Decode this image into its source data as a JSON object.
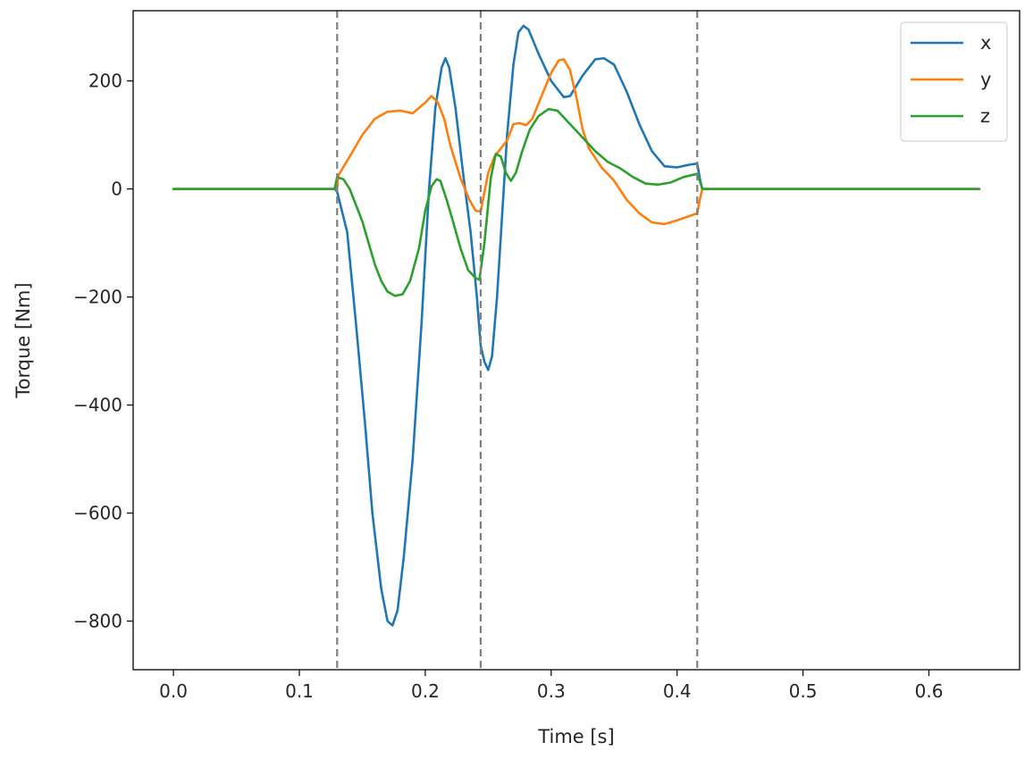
{
  "chart_data": {
    "type": "line",
    "title": "",
    "xlabel": "Time [s]",
    "ylabel": "Torque [Nm]",
    "xlim": [
      -0.032,
      0.672
    ],
    "ylim": [
      -890,
      330
    ],
    "xticks": [
      0.0,
      0.1,
      0.2,
      0.3,
      0.4,
      0.5,
      0.6
    ],
    "xtick_labels": [
      "0.0",
      "0.1",
      "0.2",
      "0.3",
      "0.4",
      "0.5",
      "0.6"
    ],
    "yticks": [
      200,
      0,
      -200,
      -400,
      -600,
      -800
    ],
    "ytick_labels": [
      "200",
      "0",
      "−200",
      "−400",
      "−600",
      "−800"
    ],
    "grid": false,
    "legend": "top-right",
    "vlines": [
      {
        "x": 0.13,
        "style": "dashed",
        "color": "#808080"
      },
      {
        "x": 0.244,
        "style": "dashed",
        "color": "#808080"
      },
      {
        "x": 0.416,
        "style": "dashed",
        "color": "#808080"
      }
    ],
    "series": [
      {
        "name": "x",
        "color": "#1f77b4",
        "points": [
          [
            0.0,
            0
          ],
          [
            0.128,
            0
          ],
          [
            0.13,
            -5
          ],
          [
            0.138,
            -80
          ],
          [
            0.145,
            -250
          ],
          [
            0.152,
            -430
          ],
          [
            0.158,
            -600
          ],
          [
            0.165,
            -740
          ],
          [
            0.17,
            -800
          ],
          [
            0.174,
            -808
          ],
          [
            0.178,
            -780
          ],
          [
            0.183,
            -680
          ],
          [
            0.19,
            -500
          ],
          [
            0.197,
            -250
          ],
          [
            0.203,
            0
          ],
          [
            0.208,
            150
          ],
          [
            0.213,
            225
          ],
          [
            0.216,
            242
          ],
          [
            0.219,
            225
          ],
          [
            0.224,
            150
          ],
          [
            0.23,
            30
          ],
          [
            0.236,
            -80
          ],
          [
            0.241,
            -200
          ],
          [
            0.244,
            -290
          ],
          [
            0.247,
            -320
          ],
          [
            0.25,
            -335
          ],
          [
            0.253,
            -310
          ],
          [
            0.257,
            -200
          ],
          [
            0.261,
            -50
          ],
          [
            0.265,
            100
          ],
          [
            0.27,
            230
          ],
          [
            0.274,
            290
          ],
          [
            0.278,
            302
          ],
          [
            0.282,
            295
          ],
          [
            0.29,
            250
          ],
          [
            0.3,
            200
          ],
          [
            0.31,
            170
          ],
          [
            0.315,
            172
          ],
          [
            0.325,
            210
          ],
          [
            0.335,
            240
          ],
          [
            0.342,
            242
          ],
          [
            0.35,
            230
          ],
          [
            0.36,
            180
          ],
          [
            0.37,
            120
          ],
          [
            0.38,
            70
          ],
          [
            0.39,
            42
          ],
          [
            0.4,
            40
          ],
          [
            0.41,
            45
          ],
          [
            0.416,
            47
          ],
          [
            0.418,
            20
          ],
          [
            0.42,
            0
          ],
          [
            0.64,
            0
          ]
        ]
      },
      {
        "name": "y",
        "color": "#ff7f0e",
        "points": [
          [
            0.0,
            0
          ],
          [
            0.13,
            0
          ],
          [
            0.131,
            25
          ],
          [
            0.14,
            60
          ],
          [
            0.15,
            100
          ],
          [
            0.16,
            130
          ],
          [
            0.17,
            143
          ],
          [
            0.18,
            145
          ],
          [
            0.19,
            140
          ],
          [
            0.2,
            160
          ],
          [
            0.205,
            172
          ],
          [
            0.21,
            160
          ],
          [
            0.215,
            130
          ],
          [
            0.22,
            80
          ],
          [
            0.228,
            20
          ],
          [
            0.235,
            -20
          ],
          [
            0.24,
            -40
          ],
          [
            0.244,
            -42
          ],
          [
            0.25,
            30
          ],
          [
            0.255,
            60
          ],
          [
            0.265,
            90
          ],
          [
            0.27,
            120
          ],
          [
            0.275,
            122
          ],
          [
            0.28,
            118
          ],
          [
            0.285,
            130
          ],
          [
            0.292,
            170
          ],
          [
            0.3,
            215
          ],
          [
            0.306,
            238
          ],
          [
            0.31,
            240
          ],
          [
            0.315,
            220
          ],
          [
            0.32,
            170
          ],
          [
            0.325,
            110
          ],
          [
            0.33,
            75
          ],
          [
            0.34,
            40
          ],
          [
            0.35,
            15
          ],
          [
            0.36,
            -20
          ],
          [
            0.37,
            -45
          ],
          [
            0.38,
            -62
          ],
          [
            0.39,
            -65
          ],
          [
            0.4,
            -58
          ],
          [
            0.41,
            -50
          ],
          [
            0.416,
            -45
          ],
          [
            0.418,
            -20
          ],
          [
            0.42,
            0
          ],
          [
            0.64,
            0
          ]
        ]
      },
      {
        "name": "z",
        "color": "#2ca02c",
        "points": [
          [
            0.0,
            0
          ],
          [
            0.128,
            0
          ],
          [
            0.13,
            22
          ],
          [
            0.135,
            18
          ],
          [
            0.14,
            0
          ],
          [
            0.145,
            -30
          ],
          [
            0.15,
            -60
          ],
          [
            0.155,
            -100
          ],
          [
            0.16,
            -140
          ],
          [
            0.165,
            -170
          ],
          [
            0.17,
            -190
          ],
          [
            0.176,
            -198
          ],
          [
            0.182,
            -195
          ],
          [
            0.188,
            -170
          ],
          [
            0.195,
            -110
          ],
          [
            0.2,
            -40
          ],
          [
            0.205,
            5
          ],
          [
            0.209,
            18
          ],
          [
            0.212,
            15
          ],
          [
            0.217,
            -20
          ],
          [
            0.222,
            -60
          ],
          [
            0.228,
            -110
          ],
          [
            0.234,
            -150
          ],
          [
            0.24,
            -165
          ],
          [
            0.243,
            -168
          ],
          [
            0.247,
            -100
          ],
          [
            0.252,
            20
          ],
          [
            0.256,
            65
          ],
          [
            0.26,
            60
          ],
          [
            0.264,
            30
          ],
          [
            0.268,
            15
          ],
          [
            0.272,
            30
          ],
          [
            0.277,
            70
          ],
          [
            0.283,
            110
          ],
          [
            0.29,
            135
          ],
          [
            0.298,
            148
          ],
          [
            0.305,
            145
          ],
          [
            0.315,
            120
          ],
          [
            0.325,
            95
          ],
          [
            0.335,
            70
          ],
          [
            0.345,
            50
          ],
          [
            0.355,
            38
          ],
          [
            0.365,
            22
          ],
          [
            0.375,
            10
          ],
          [
            0.385,
            8
          ],
          [
            0.395,
            12
          ],
          [
            0.405,
            22
          ],
          [
            0.416,
            28
          ],
          [
            0.418,
            15
          ],
          [
            0.42,
            0
          ],
          [
            0.64,
            0
          ]
        ]
      }
    ]
  }
}
